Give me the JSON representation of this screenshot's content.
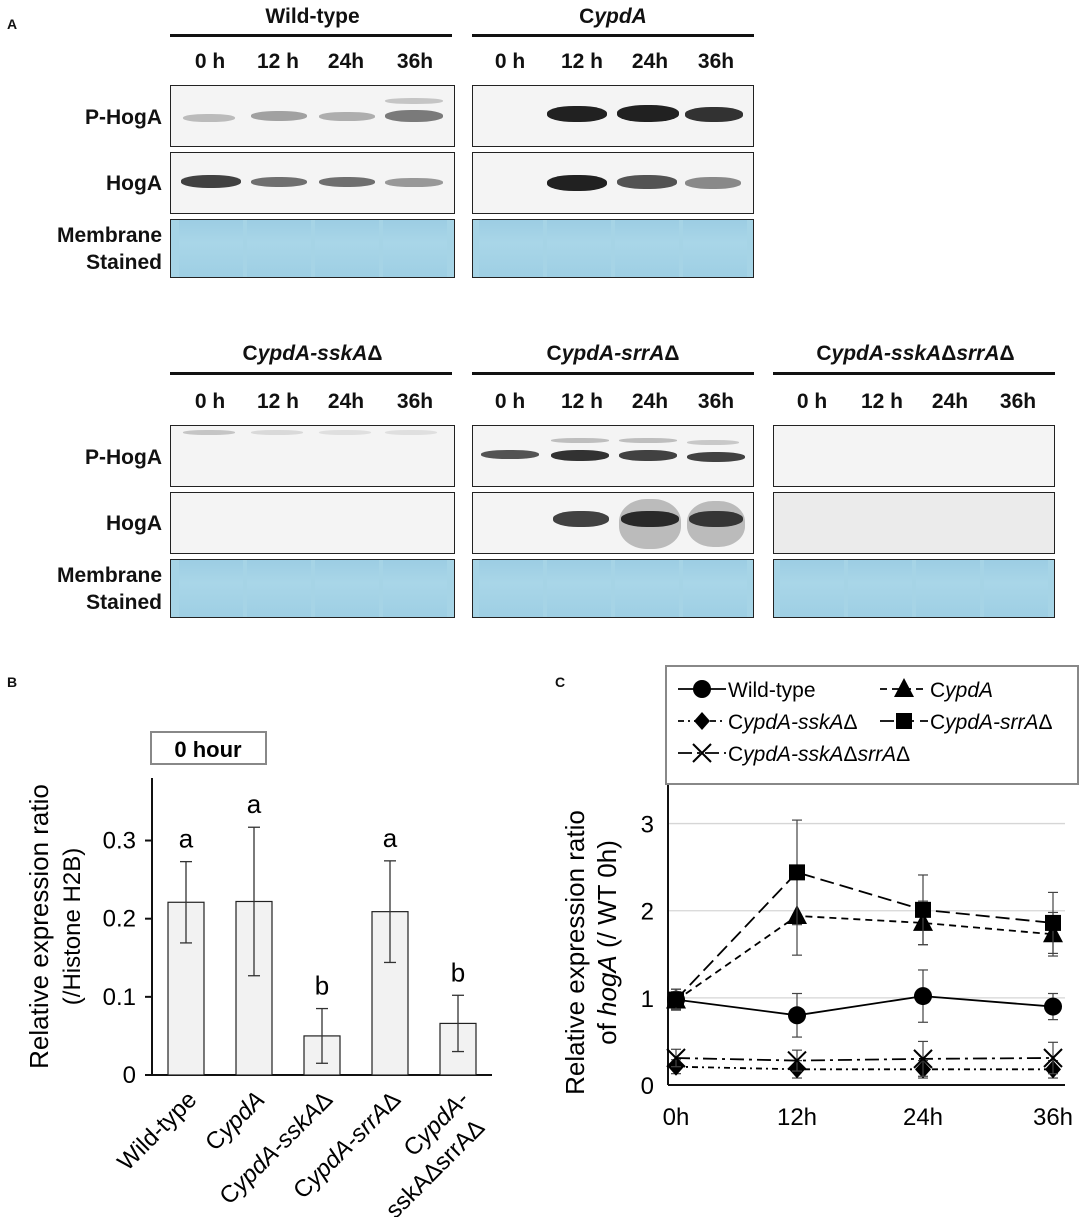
{
  "panel_a": {
    "letter": "A",
    "time_points": [
      "0 h",
      "12 h",
      "24h",
      "36h"
    ],
    "row_labels": {
      "phospho": "P-HogA",
      "total": "HogA",
      "membrane_line1": "Membrane",
      "membrane_line2": "Stained"
    },
    "strains": {
      "wt": {
        "prefix": "Wild-type",
        "italic": ""
      },
      "cypda": {
        "prefix": "C",
        "italic": "ypdA"
      },
      "sska": {
        "prefix": "C",
        "italic": "ypdA-sskA",
        "suffix": "Δ"
      },
      "srra": {
        "prefix": "C",
        "italic": "ypdA-srrA",
        "suffix": "Δ"
      },
      "double": {
        "prefix": "C",
        "italic": "ypdA-sskA",
        "mid": "Δ",
        "italic2": "srrA",
        "suffix": "Δ"
      }
    }
  },
  "chart_data": [
    {
      "panel": "B",
      "type": "bar",
      "box_label": "0 hour",
      "ylabel_line1": "Relative expression ratio",
      "ylabel_line2": "(/Histone H2B)",
      "ylim": [
        0,
        0.38
      ],
      "yticks": [
        "0",
        "0.1",
        "0.2",
        "0.3"
      ],
      "ytick_values": [
        0,
        0.1,
        0.2,
        0.3
      ],
      "categories": [
        "Wild-type",
        "CypdA",
        "CypdA-sskAΔ",
        "CypdA-srrAΔ",
        "CypdA-sskAΔsrrAΔ"
      ],
      "category_labels": [
        [
          "Wild-type"
        ],
        [
          "CypdA"
        ],
        [
          "CypdA-sskAΔ"
        ],
        [
          "CypdA-srrAΔ"
        ],
        [
          "CypdA-",
          "sskAΔsrrAΔ"
        ]
      ],
      "values": [
        0.221,
        0.222,
        0.05,
        0.209,
        0.066
      ],
      "errors": [
        0.052,
        0.095,
        0.035,
        0.065,
        0.036
      ],
      "significance": [
        "a",
        "a",
        "b",
        "a",
        "b"
      ],
      "bar_color": "#f2f2f2"
    },
    {
      "panel": "C",
      "type": "line",
      "ylabel_line1": "Relative expression ratio",
      "ylabel_line2_prefix": "of ",
      "ylabel_line2_italic": "hogA",
      "ylabel_line2_suffix": " (/ WT 0h)",
      "x": [
        "0h",
        "12h",
        "24h",
        "36h"
      ],
      "ylim": [
        0,
        3.5
      ],
      "yticks": [
        "0",
        "1",
        "2",
        "3"
      ],
      "ytick_values": [
        0,
        1,
        2,
        3
      ],
      "grid": true,
      "legend_position": "top",
      "series": [
        {
          "name": "Wild-type",
          "marker": "circle",
          "dash": "solid",
          "values": [
            0.98,
            0.8,
            1.02,
            0.9
          ],
          "errors": [
            0.12,
            0.25,
            0.3,
            0.15
          ]
        },
        {
          "name": "CypdA",
          "marker": "triangle",
          "dash": "dashed-short",
          "values": [
            0.97,
            1.94,
            1.86,
            1.73
          ],
          "errors": [
            0.1,
            0.45,
            0.25,
            0.25
          ]
        },
        {
          "name": "CypdA-sskAΔ",
          "marker": "diamond",
          "dash": "dashdot",
          "values": [
            0.21,
            0.18,
            0.18,
            0.18
          ],
          "errors": [
            0.08,
            0.1,
            0.1,
            0.1
          ]
        },
        {
          "name": "CypdA-srrAΔ",
          "marker": "square",
          "dash": "dashed-long",
          "values": [
            0.98,
            2.44,
            2.01,
            1.86
          ],
          "errors": [
            0.12,
            0.6,
            0.4,
            0.35
          ]
        },
        {
          "name": "CypdA-sskAΔsrrAΔ",
          "marker": "x",
          "dash": "dashdot-long",
          "values": [
            0.31,
            0.28,
            0.3,
            0.31
          ],
          "errors": [
            0.1,
            0.12,
            0.2,
            0.18
          ]
        }
      ]
    }
  ]
}
